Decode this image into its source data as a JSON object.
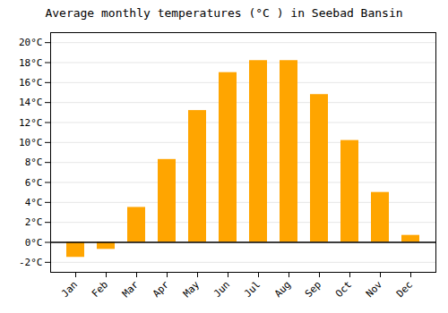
{
  "chart_data": {
    "type": "bar",
    "title": "Average monthly temperatures (°C ) in Seebad Bansin",
    "categories": [
      "Jan",
      "Feb",
      "Mar",
      "Apr",
      "May",
      "Jun",
      "Jul",
      "Aug",
      "Sep",
      "Oct",
      "Nov",
      "Dec"
    ],
    "values": [
      -1.5,
      -0.7,
      3.5,
      8.3,
      13.2,
      17.0,
      18.2,
      18.2,
      14.8,
      10.2,
      5.0,
      0.7
    ],
    "color": "#FFA500",
    "ylim": [
      -3,
      21
    ],
    "yticks": [
      {
        "value": -2,
        "label": "-2°C"
      },
      {
        "value": 0,
        "label": "0°C"
      },
      {
        "value": 2,
        "label": "2°C"
      },
      {
        "value": 4,
        "label": "4°C"
      },
      {
        "value": 6,
        "label": "6°C"
      },
      {
        "value": 8,
        "label": "8°C"
      },
      {
        "value": 10,
        "label": "10°C"
      },
      {
        "value": 12,
        "label": "12°C"
      },
      {
        "value": 14,
        "label": "14°C"
      },
      {
        "value": 16,
        "label": "16°C"
      },
      {
        "value": 18,
        "label": "18°C"
      },
      {
        "value": 20,
        "label": "20°C"
      }
    ],
    "grid": true
  }
}
